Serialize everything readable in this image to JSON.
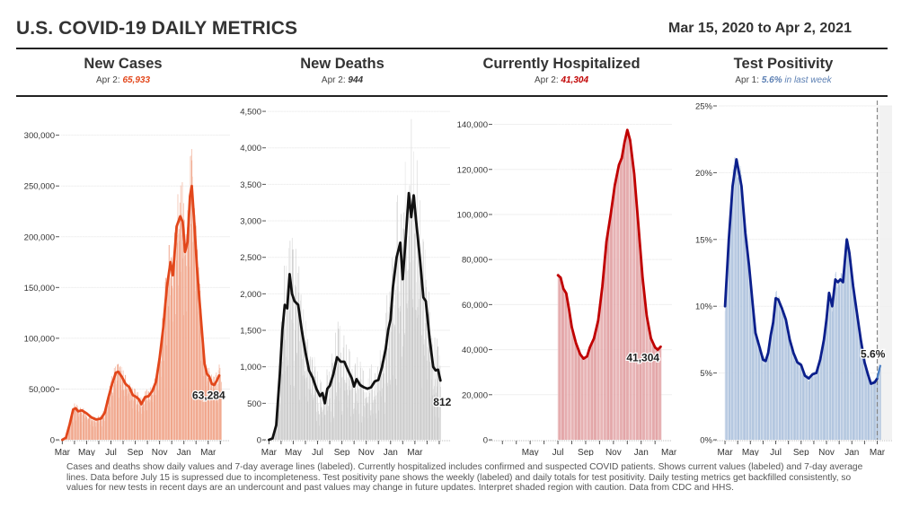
{
  "header": {
    "title": "U.S. COVID-19 DAILY METRICS",
    "date_range": "Mar 15, 2020 to Apr 2, 2021"
  },
  "panels": [
    {
      "title": "New Cases",
      "subtitle_prefix": "Apr 2: ",
      "subtitle_value": "65,933",
      "subtitle_suffix": "",
      "value_color": "#e2471b"
    },
    {
      "title": "New Deaths",
      "subtitle_prefix": "Apr 2: ",
      "subtitle_value": "944",
      "subtitle_suffix": "",
      "value_color": "#333333"
    },
    {
      "title": "Currently Hospitalized",
      "subtitle_prefix": "Apr 2: ",
      "subtitle_value": "41,304",
      "subtitle_suffix": "",
      "value_color": "#c00000"
    },
    {
      "title": "Test Positivity",
      "subtitle_prefix": "Apr 1: ",
      "subtitle_value": "5.6%",
      "subtitle_suffix": " in last week",
      "value_color": "#5b7fb3"
    }
  ],
  "footer": {
    "note": "Cases and deaths show daily values and 7-day average lines (labeled). Currently hospitalized includes confirmed and suspected COVID patients. Shows current values (labeled) and 7-day average lines. Data before July 15 is supressed due to incompleteness. Test positivity pane shows the weekly (labeled) and daily totals for test positivity. Daily testing metrics get backfilled consistently, so values for new tests in recent days are an undercount and past values may change in future updates. Interpret shaded region with caution. Data from CDC and HHS."
  },
  "chart_data": [
    {
      "type": "bar",
      "title": "New Cases",
      "xlabel": "",
      "ylabel": "",
      "x_range": [
        "2020-03-15",
        "2021-04-02"
      ],
      "x_ticks": [
        "Mar",
        "May",
        "Jul",
        "Sep",
        "Nov",
        "Jan",
        "Mar"
      ],
      "x_tick_months": [
        0,
        2,
        4,
        6,
        8,
        10,
        12
      ],
      "y_ticks": [
        0,
        50000,
        100000,
        150000,
        200000,
        250000,
        300000
      ],
      "y_tick_labels": [
        "0",
        "50,000",
        "100,000",
        "150,000",
        "200,000",
        "250,000",
        "300,000"
      ],
      "ylim": [
        0,
        320000
      ],
      "bar_color": "#f0a58a",
      "line_color": "#e2471b",
      "end_label": "63,284",
      "avg_line": [
        [
          0,
          0
        ],
        [
          0.3,
          2000
        ],
        [
          0.6,
          15000
        ],
        [
          0.9,
          30000
        ],
        [
          1.1,
          31000
        ],
        [
          1.3,
          28000
        ],
        [
          1.6,
          29000
        ],
        [
          2.0,
          26000
        ],
        [
          2.4,
          22000
        ],
        [
          2.8,
          20000
        ],
        [
          3.2,
          21000
        ],
        [
          3.5,
          27000
        ],
        [
          3.8,
          42000
        ],
        [
          4.1,
          55000
        ],
        [
          4.4,
          66000
        ],
        [
          4.6,
          67000
        ],
        [
          4.9,
          62000
        ],
        [
          5.2,
          55000
        ],
        [
          5.5,
          52000
        ],
        [
          5.8,
          44000
        ],
        [
          6.1,
          42000
        ],
        [
          6.3,
          40000
        ],
        [
          6.5,
          35000
        ],
        [
          6.8,
          42000
        ],
        [
          7.1,
          43000
        ],
        [
          7.4,
          48000
        ],
        [
          7.7,
          57000
        ],
        [
          8.0,
          80000
        ],
        [
          8.3,
          110000
        ],
        [
          8.6,
          150000
        ],
        [
          8.9,
          175000
        ],
        [
          9.1,
          162000
        ],
        [
          9.4,
          210000
        ],
        [
          9.7,
          220000
        ],
        [
          9.9,
          215000
        ],
        [
          10.1,
          185000
        ],
        [
          10.3,
          195000
        ],
        [
          10.5,
          240000
        ],
        [
          10.65,
          250000
        ],
        [
          10.85,
          215000
        ],
        [
          11.1,
          165000
        ],
        [
          11.4,
          120000
        ],
        [
          11.7,
          75000
        ],
        [
          11.9,
          65000
        ],
        [
          12.1,
          62000
        ],
        [
          12.3,
          55000
        ],
        [
          12.5,
          54000
        ],
        [
          12.7,
          58000
        ],
        [
          12.9,
          63284
        ]
      ],
      "bar_peak_note": "daily bars peak near 315,000 in early January"
    },
    {
      "type": "bar",
      "title": "New Deaths",
      "xlabel": "",
      "ylabel": "",
      "x_range": [
        "2020-03-15",
        "2021-04-02"
      ],
      "x_ticks": [
        "Mar",
        "May",
        "Jul",
        "Sep",
        "Nov",
        "Jan",
        "Mar"
      ],
      "x_tick_months": [
        0,
        2,
        4,
        6,
        8,
        10,
        12
      ],
      "y_ticks": [
        0,
        500,
        1000,
        1500,
        2000,
        2500,
        3000,
        3500,
        4000,
        4500
      ],
      "y_tick_labels": [
        "0",
        "500",
        "1,000",
        "1,500",
        "2,000",
        "2,500",
        "3,000",
        "3,500",
        "4,000",
        "4,500"
      ],
      "ylim": [
        0,
        4550
      ],
      "bar_color": "#cccccc",
      "line_color": "#111111",
      "end_label": "812",
      "avg_line": [
        [
          0,
          0
        ],
        [
          0.3,
          20
        ],
        [
          0.6,
          200
        ],
        [
          0.9,
          900
        ],
        [
          1.1,
          1500
        ],
        [
          1.3,
          1850
        ],
        [
          1.5,
          1800
        ],
        [
          1.7,
          2270
        ],
        [
          1.9,
          2000
        ],
        [
          2.1,
          1900
        ],
        [
          2.4,
          1850
        ],
        [
          2.7,
          1500
        ],
        [
          3.0,
          1200
        ],
        [
          3.3,
          950
        ],
        [
          3.6,
          850
        ],
        [
          3.9,
          700
        ],
        [
          4.2,
          600
        ],
        [
          4.4,
          640
        ],
        [
          4.6,
          500
        ],
        [
          4.8,
          700
        ],
        [
          5.0,
          740
        ],
        [
          5.3,
          900
        ],
        [
          5.6,
          1130
        ],
        [
          5.9,
          1070
        ],
        [
          6.2,
          1070
        ],
        [
          6.5,
          950
        ],
        [
          6.8,
          850
        ],
        [
          7.0,
          730
        ],
        [
          7.2,
          830
        ],
        [
          7.5,
          750
        ],
        [
          7.8,
          720
        ],
        [
          8.1,
          700
        ],
        [
          8.4,
          720
        ],
        [
          8.7,
          800
        ],
        [
          9.0,
          820
        ],
        [
          9.3,
          1000
        ],
        [
          9.6,
          1250
        ],
        [
          9.8,
          1500
        ],
        [
          10.0,
          1650
        ],
        [
          10.2,
          2100
        ],
        [
          10.5,
          2500
        ],
        [
          10.8,
          2700
        ],
        [
          11.0,
          2200
        ],
        [
          11.2,
          2650
        ],
        [
          11.5,
          3380
        ],
        [
          11.7,
          3050
        ],
        [
          11.9,
          3350
        ],
        [
          12.1,
          3000
        ],
        [
          12.4,
          2500
        ],
        [
          12.7,
          1950
        ],
        [
          12.9,
          1900
        ],
        [
          13.2,
          1400
        ],
        [
          13.5,
          1000
        ],
        [
          13.7,
          950
        ],
        [
          13.9,
          960
        ],
        [
          14.1,
          812
        ]
      ],
      "bar_peak_note": "daily bars peak near 4,400 in mid January"
    },
    {
      "type": "bar",
      "title": "Currently Hospitalized",
      "xlabel": "",
      "ylabel": "",
      "x_range": [
        "2020-03-15",
        "2021-04-02"
      ],
      "x_ticks": [
        "May",
        "Jul",
        "Sep",
        "Nov",
        "Jan",
        "Mar"
      ],
      "x_tick_months": [
        2,
        4,
        6,
        8,
        10,
        12
      ],
      "y_ticks": [
        0,
        20000,
        40000,
        60000,
        80000,
        100000,
        120000,
        140000
      ],
      "y_tick_labels": [
        "0",
        "20,000",
        "40,000",
        "60,000",
        "80,000",
        "100,000",
        "120,000",
        "140,000"
      ],
      "ylim": [
        0,
        145000
      ],
      "data_start": "2020-07-15",
      "bar_color": "#e3a6a8",
      "line_color": "#c00000",
      "end_label": "41,304",
      "avg_line": [
        [
          4.0,
          73000
        ],
        [
          4.2,
          72000
        ],
        [
          4.4,
          67000
        ],
        [
          4.6,
          65000
        ],
        [
          4.8,
          58000
        ],
        [
          5.0,
          50000
        ],
        [
          5.3,
          43000
        ],
        [
          5.6,
          38000
        ],
        [
          5.85,
          36000
        ],
        [
          6.1,
          37000
        ],
        [
          6.3,
          41000
        ],
        [
          6.6,
          45000
        ],
        [
          6.9,
          53000
        ],
        [
          7.2,
          68000
        ],
        [
          7.5,
          88000
        ],
        [
          7.8,
          100000
        ],
        [
          8.1,
          113000
        ],
        [
          8.4,
          122000
        ],
        [
          8.6,
          125000
        ],
        [
          8.8,
          132000
        ],
        [
          9.0,
          137500
        ],
        [
          9.2,
          133000
        ],
        [
          9.5,
          118000
        ],
        [
          9.8,
          95000
        ],
        [
          10.1,
          72000
        ],
        [
          10.4,
          55000
        ],
        [
          10.7,
          45000
        ],
        [
          11.0,
          41000
        ],
        [
          11.2,
          40000
        ],
        [
          11.4,
          41304
        ]
      ],
      "bar_peak_note": "daily bars peak near 141,000 in early January"
    },
    {
      "type": "bar",
      "title": "Test Positivity",
      "xlabel": "",
      "ylabel": "",
      "x_range": [
        "2020-03-15",
        "2021-04-02"
      ],
      "x_ticks": [
        "Mar",
        "May",
        "Jul",
        "Sep",
        "Nov",
        "Jan",
        "Mar"
      ],
      "x_tick_months": [
        0,
        2,
        4,
        6,
        8,
        10,
        12
      ],
      "y_ticks": [
        0,
        5,
        10,
        15,
        20,
        25
      ],
      "y_tick_labels": [
        "0%",
        "5%",
        "10%",
        "15%",
        "20%",
        "25%"
      ],
      "ylim": [
        0,
        25
      ],
      "bar_color": "#b0c4de",
      "line_color": "#0b1f8c",
      "recent_line_color": "#4a7fc4",
      "shaded_region": "last week (backfill caution)",
      "end_label": "5.6%",
      "avg_line": [
        [
          0,
          10
        ],
        [
          0.3,
          15
        ],
        [
          0.6,
          19
        ],
        [
          0.9,
          21
        ],
        [
          1.1,
          20
        ],
        [
          1.3,
          19
        ],
        [
          1.6,
          15.5
        ],
        [
          1.9,
          13
        ],
        [
          2.2,
          10
        ],
        [
          2.4,
          8
        ],
        [
          2.7,
          7
        ],
        [
          3.0,
          6
        ],
        [
          3.2,
          5.9
        ],
        [
          3.4,
          6.5
        ],
        [
          3.6,
          7.8
        ],
        [
          3.8,
          8.8
        ],
        [
          4.0,
          10.6
        ],
        [
          4.2,
          10.5
        ],
        [
          4.5,
          9.8
        ],
        [
          4.8,
          9
        ],
        [
          5.1,
          7.5
        ],
        [
          5.4,
          6.5
        ],
        [
          5.7,
          5.8
        ],
        [
          6.0,
          5.6
        ],
        [
          6.3,
          4.8
        ],
        [
          6.6,
          4.6
        ],
        [
          6.9,
          4.9
        ],
        [
          7.2,
          5
        ],
        [
          7.5,
          6
        ],
        [
          7.8,
          7.5
        ],
        [
          8.0,
          9
        ],
        [
          8.2,
          11
        ],
        [
          8.45,
          10
        ],
        [
          8.7,
          12
        ],
        [
          8.9,
          11.8
        ],
        [
          9.1,
          12
        ],
        [
          9.3,
          11.8
        ],
        [
          9.6,
          15
        ],
        [
          9.8,
          14
        ],
        [
          10.1,
          11.5
        ],
        [
          10.4,
          9.5
        ],
        [
          10.7,
          7.5
        ],
        [
          11.0,
          5.8
        ],
        [
          11.3,
          4.8
        ],
        [
          11.5,
          4.2
        ],
        [
          11.8,
          4.3
        ],
        [
          12.0,
          4.6
        ]
      ],
      "recent_line": [
        [
          12.0,
          4.6
        ],
        [
          12.1,
          5
        ],
        [
          12.25,
          5.6
        ]
      ]
    }
  ]
}
